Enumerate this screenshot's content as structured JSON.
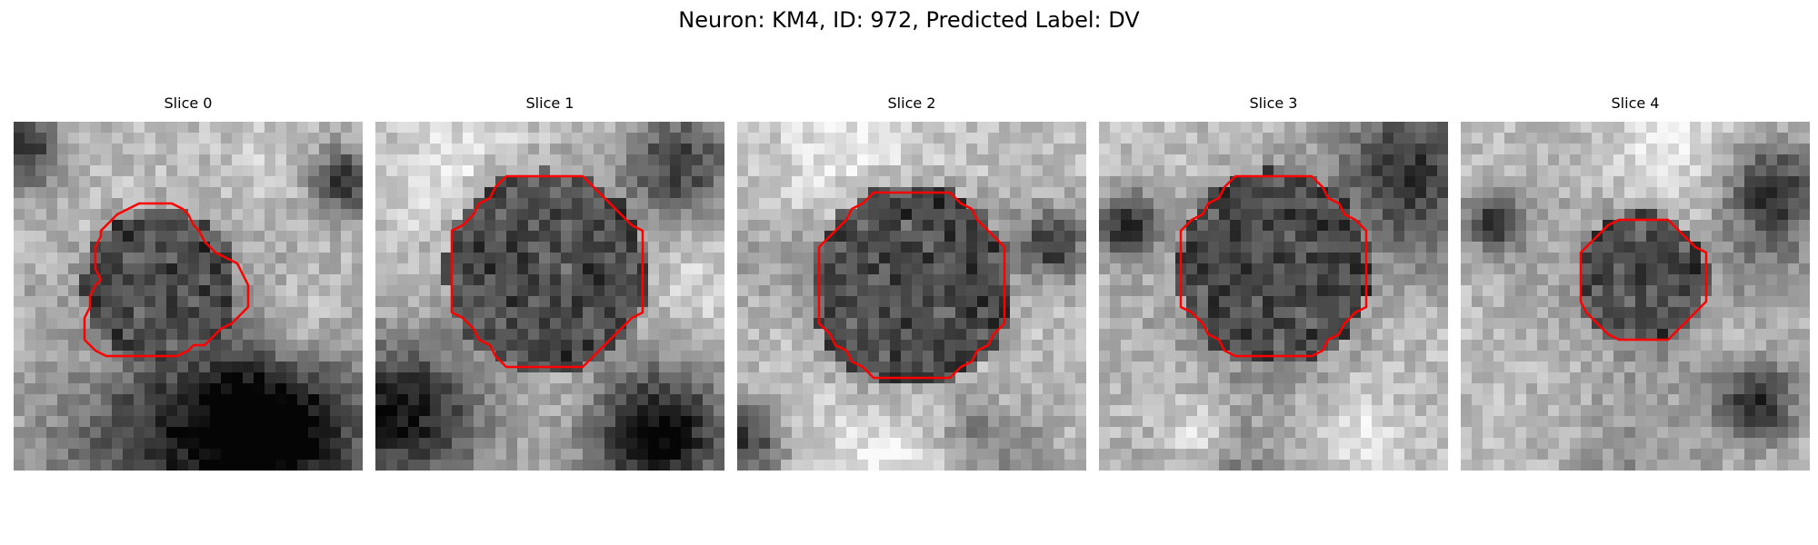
{
  "figure": {
    "title": "Neuron: KM4, ID: 972, Predicted Label: DV"
  },
  "contour_color": "#ff0000",
  "panels": [
    {
      "title": "Slice 0",
      "seed": 11,
      "center": [
        0.42,
        0.47
      ],
      "radius": 0.22,
      "shape": "blob",
      "dark_regions": [
        [
          0.95,
          0.17,
          0.1
        ],
        [
          0.02,
          0.08,
          0.12
        ],
        [
          0.5,
          0.9,
          0.4
        ],
        [
          0.8,
          0.85,
          0.25
        ]
      ]
    },
    {
      "title": "Slice 1",
      "seed": 23,
      "center": [
        0.49,
        0.43
      ],
      "radius": 0.29,
      "shape": "octagon",
      "dark_regions": [
        [
          0.85,
          0.12,
          0.18
        ],
        [
          0.1,
          0.85,
          0.25
        ],
        [
          0.8,
          0.9,
          0.2
        ]
      ]
    },
    {
      "title": "Slice 2",
      "seed": 37,
      "center": [
        0.5,
        0.47
      ],
      "radius": 0.29,
      "shape": "octagon",
      "dark_regions": [
        [
          0.02,
          0.92,
          0.12
        ],
        [
          0.9,
          0.35,
          0.1
        ]
      ]
    },
    {
      "title": "Slice 3",
      "seed": 51,
      "center": [
        0.5,
        0.42
      ],
      "radius": 0.28,
      "shape": "octagon",
      "dark_regions": [
        [
          0.88,
          0.15,
          0.22
        ],
        [
          0.08,
          0.3,
          0.1
        ]
      ]
    },
    {
      "title": "Slice 4",
      "seed": 67,
      "center": [
        0.52,
        0.45
      ],
      "radius": 0.19,
      "shape": "octagon",
      "dark_regions": [
        [
          0.9,
          0.2,
          0.14
        ],
        [
          0.1,
          0.28,
          0.08
        ],
        [
          0.85,
          0.8,
          0.12
        ]
      ]
    }
  ]
}
